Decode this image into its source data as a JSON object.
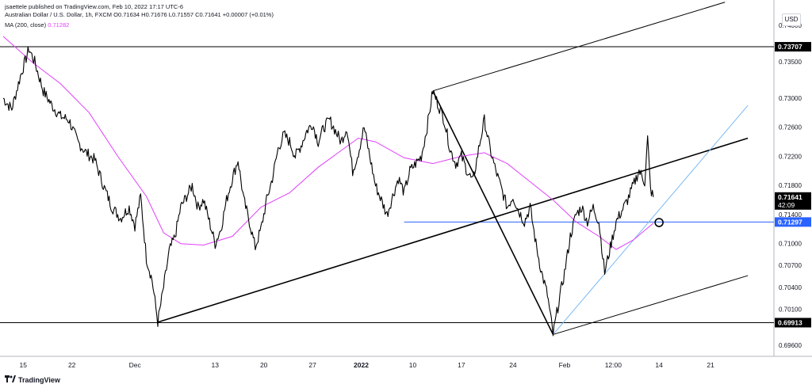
{
  "header": {
    "published": "jsaettele published on TradingView.com, Feb 10, 2022 17:17 UTC-6",
    "symbol": "Australian Dollar / U.S. Dollar, 1h, FXCM",
    "ohlc": "O0.71634 H0.71676 L0.71557 C0.71641 +0.00007 (+0.01%)",
    "ma_label": "MA (200, close)",
    "ma_value": "0.71282"
  },
  "price_unit": "USD",
  "footer": {
    "brand": "TradingView"
  },
  "colors": {
    "price": "#000000",
    "ma": "#e040fb",
    "blue_line": "#2962ff",
    "trend_light_blue": "#7ab8f5",
    "channel": "#000000",
    "last_price_bg": "#000000",
    "blue_label_bg": "#2962ff"
  },
  "chart_data": {
    "type": "line",
    "title": "Australian Dollar / U.S. Dollar, 1h, FXCM",
    "y_axis": {
      "min": 0.6945,
      "max": 0.7435,
      "ticks": [
        "0.74000",
        "0.73500",
        "0.73000",
        "0.72600",
        "0.72200",
        "0.71800",
        "0.71400",
        "0.71000",
        "0.70700",
        "0.70400",
        "0.70100",
        "0.69600"
      ],
      "scale": "linear"
    },
    "x_axis": {
      "tick_labels": [
        "15",
        "22",
        "Dec",
        "13",
        "20",
        "27",
        "2022",
        "10",
        "17",
        "24",
        "Feb",
        "12:00",
        "14",
        "21"
      ]
    },
    "price_labels": [
      {
        "value": "0.73707",
        "style": "dark"
      },
      {
        "value": "0.71641",
        "style": "dark",
        "sub": "42:09"
      },
      {
        "value": "0.71297",
        "style": "blue"
      },
      {
        "value": "0.69913",
        "style": "dark"
      }
    ],
    "horizontal_levels": [
      0.73707,
      0.69913,
      0.71297
    ],
    "price_series": [
      {
        "i": 0,
        "v": 0.73
      },
      {
        "i": 3,
        "v": 0.7285
      },
      {
        "i": 6,
        "v": 0.733
      },
      {
        "i": 8,
        "v": 0.7355
      },
      {
        "i": 9,
        "v": 0.7368
      },
      {
        "i": 11,
        "v": 0.735
      },
      {
        "i": 14,
        "v": 0.731
      },
      {
        "i": 17,
        "v": 0.729
      },
      {
        "i": 20,
        "v": 0.7275
      },
      {
        "i": 23,
        "v": 0.727
      },
      {
        "i": 26,
        "v": 0.724
      },
      {
        "i": 29,
        "v": 0.7225
      },
      {
        "i": 32,
        "v": 0.7215
      },
      {
        "i": 35,
        "v": 0.718
      },
      {
        "i": 38,
        "v": 0.715
      },
      {
        "i": 41,
        "v": 0.7135
      },
      {
        "i": 44,
        "v": 0.715
      },
      {
        "i": 46,
        "v": 0.7125
      },
      {
        "i": 48,
        "v": 0.7165
      },
      {
        "i": 50,
        "v": 0.708
      },
      {
        "i": 52,
        "v": 0.705
      },
      {
        "i": 54,
        "v": 0.6992
      },
      {
        "i": 56,
        "v": 0.704
      },
      {
        "i": 58,
        "v": 0.709
      },
      {
        "i": 60,
        "v": 0.711
      },
      {
        "i": 62,
        "v": 0.715
      },
      {
        "i": 64,
        "v": 0.7165
      },
      {
        "i": 66,
        "v": 0.718
      },
      {
        "i": 68,
        "v": 0.715
      },
      {
        "i": 70,
        "v": 0.716
      },
      {
        "i": 72,
        "v": 0.713
      },
      {
        "i": 74,
        "v": 0.71
      },
      {
        "i": 76,
        "v": 0.712
      },
      {
        "i": 78,
        "v": 0.716
      },
      {
        "i": 80,
        "v": 0.719
      },
      {
        "i": 82,
        "v": 0.7215
      },
      {
        "i": 84,
        "v": 0.716
      },
      {
        "i": 86,
        "v": 0.713
      },
      {
        "i": 88,
        "v": 0.7095
      },
      {
        "i": 90,
        "v": 0.712
      },
      {
        "i": 92,
        "v": 0.716
      },
      {
        "i": 94,
        "v": 0.719
      },
      {
        "i": 96,
        "v": 0.723
      },
      {
        "i": 98,
        "v": 0.725
      },
      {
        "i": 100,
        "v": 0.724
      },
      {
        "i": 102,
        "v": 0.722
      },
      {
        "i": 104,
        "v": 0.7235
      },
      {
        "i": 106,
        "v": 0.7255
      },
      {
        "i": 108,
        "v": 0.7265
      },
      {
        "i": 110,
        "v": 0.724
      },
      {
        "i": 112,
        "v": 0.726
      },
      {
        "i": 114,
        "v": 0.727
      },
      {
        "i": 116,
        "v": 0.7255
      },
      {
        "i": 118,
        "v": 0.724
      },
      {
        "i": 120,
        "v": 0.726
      },
      {
        "i": 122,
        "v": 0.72
      },
      {
        "i": 124,
        "v": 0.7225
      },
      {
        "i": 126,
        "v": 0.726
      },
      {
        "i": 128,
        "v": 0.722
      },
      {
        "i": 130,
        "v": 0.718
      },
      {
        "i": 132,
        "v": 0.716
      },
      {
        "i": 134,
        "v": 0.714
      },
      {
        "i": 136,
        "v": 0.7165
      },
      {
        "i": 138,
        "v": 0.719
      },
      {
        "i": 140,
        "v": 0.717
      },
      {
        "i": 142,
        "v": 0.72
      },
      {
        "i": 144,
        "v": 0.721
      },
      {
        "i": 146,
        "v": 0.722
      },
      {
        "i": 148,
        "v": 0.726
      },
      {
        "i": 150,
        "v": 0.731
      },
      {
        "i": 152,
        "v": 0.729
      },
      {
        "i": 154,
        "v": 0.727
      },
      {
        "i": 156,
        "v": 0.723
      },
      {
        "i": 158,
        "v": 0.721
      },
      {
        "i": 160,
        "v": 0.722
      },
      {
        "i": 162,
        "v": 0.72
      },
      {
        "i": 164,
        "v": 0.7185
      },
      {
        "i": 166,
        "v": 0.723
      },
      {
        "i": 168,
        "v": 0.727
      },
      {
        "i": 170,
        "v": 0.723
      },
      {
        "i": 172,
        "v": 0.72
      },
      {
        "i": 174,
        "v": 0.7175
      },
      {
        "i": 176,
        "v": 0.715
      },
      {
        "i": 178,
        "v": 0.7165
      },
      {
        "i": 180,
        "v": 0.7145
      },
      {
        "i": 182,
        "v": 0.713
      },
      {
        "i": 184,
        "v": 0.715
      },
      {
        "i": 186,
        "v": 0.71
      },
      {
        "i": 188,
        "v": 0.706
      },
      {
        "i": 190,
        "v": 0.703
      },
      {
        "i": 192,
        "v": 0.6975
      },
      {
        "i": 194,
        "v": 0.702
      },
      {
        "i": 196,
        "v": 0.706
      },
      {
        "i": 198,
        "v": 0.711
      },
      {
        "i": 200,
        "v": 0.714
      },
      {
        "i": 202,
        "v": 0.715
      },
      {
        "i": 204,
        "v": 0.713
      },
      {
        "i": 206,
        "v": 0.715
      },
      {
        "i": 208,
        "v": 0.713
      },
      {
        "i": 210,
        "v": 0.706
      },
      {
        "i": 212,
        "v": 0.7095
      },
      {
        "i": 214,
        "v": 0.713
      },
      {
        "i": 216,
        "v": 0.7145
      },
      {
        "i": 218,
        "v": 0.716
      },
      {
        "i": 220,
        "v": 0.718
      },
      {
        "i": 222,
        "v": 0.72
      },
      {
        "i": 224,
        "v": 0.7185
      },
      {
        "i": 225,
        "v": 0.7245
      },
      {
        "i": 226,
        "v": 0.7175
      },
      {
        "i": 227,
        "v": 0.7164
      }
    ],
    "ma_series": [
      {
        "i": 0,
        "v": 0.7385
      },
      {
        "i": 10,
        "v": 0.735
      },
      {
        "i": 20,
        "v": 0.732
      },
      {
        "i": 30,
        "v": 0.728
      },
      {
        "i": 40,
        "v": 0.722
      },
      {
        "i": 50,
        "v": 0.7165
      },
      {
        "i": 56,
        "v": 0.7115
      },
      {
        "i": 62,
        "v": 0.71
      },
      {
        "i": 70,
        "v": 0.7098
      },
      {
        "i": 80,
        "v": 0.711
      },
      {
        "i": 90,
        "v": 0.715
      },
      {
        "i": 100,
        "v": 0.717
      },
      {
        "i": 110,
        "v": 0.7205
      },
      {
        "i": 118,
        "v": 0.7228
      },
      {
        "i": 124,
        "v": 0.7245
      },
      {
        "i": 130,
        "v": 0.724
      },
      {
        "i": 140,
        "v": 0.7218
      },
      {
        "i": 150,
        "v": 0.721
      },
      {
        "i": 160,
        "v": 0.722
      },
      {
        "i": 168,
        "v": 0.7225
      },
      {
        "i": 176,
        "v": 0.721
      },
      {
        "i": 184,
        "v": 0.7185
      },
      {
        "i": 192,
        "v": 0.716
      },
      {
        "i": 200,
        "v": 0.713
      },
      {
        "i": 208,
        "v": 0.711
      },
      {
        "i": 214,
        "v": 0.7092
      },
      {
        "i": 220,
        "v": 0.7105
      },
      {
        "i": 227,
        "v": 0.7128
      }
    ],
    "trend_lines": [
      {
        "name": "rising-trendline",
        "from": {
          "i": 54,
          "v": 0.6992
        },
        "to": {
          "i": 260,
          "v": 0.7245
        },
        "color": "#000000"
      },
      {
        "name": "decline-line",
        "from": {
          "i": 150,
          "v": 0.731
        },
        "to": {
          "i": 192,
          "v": 0.6975
        },
        "color": "#000000"
      },
      {
        "name": "channel-upper",
        "from": {
          "i": 150,
          "v": 0.731
        },
        "to": {
          "i": 252,
          "v": 0.7432
        },
        "color": "#000000"
      },
      {
        "name": "channel-lower",
        "from": {
          "i": 192,
          "v": 0.6975
        },
        "to": {
          "i": 260,
          "v": 0.7056
        },
        "color": "#000000"
      },
      {
        "name": "support-trendline",
        "from": {
          "i": 192,
          "v": 0.6975
        },
        "to": {
          "i": 260,
          "v": 0.729
        },
        "color": "#7ab8f5"
      }
    ],
    "blue_level": {
      "from_i": 140,
      "to_i": 260,
      "v": 0.71297
    },
    "marker_circle": {
      "i": 229,
      "v": 0.7129
    },
    "x_tick_positions": [
      {
        "label": "15",
        "i": 7
      },
      {
        "label": "22",
        "i": 24
      },
      {
        "label": "Dec",
        "i": 46
      },
      {
        "label": "13",
        "i": 74
      },
      {
        "label": "20",
        "i": 91
      },
      {
        "label": "27",
        "i": 108
      },
      {
        "label": "2022",
        "i": 125
      },
      {
        "label": "10",
        "i": 143
      },
      {
        "label": "17",
        "i": 160
      },
      {
        "label": "24",
        "i": 178
      },
      {
        "label": "Feb",
        "i": 196
      },
      {
        "label": "12:00",
        "i": 213
      },
      {
        "label": "14",
        "i": 229
      },
      {
        "label": "21",
        "i": 247
      }
    ],
    "grid": false,
    "legend": "top-left"
  }
}
